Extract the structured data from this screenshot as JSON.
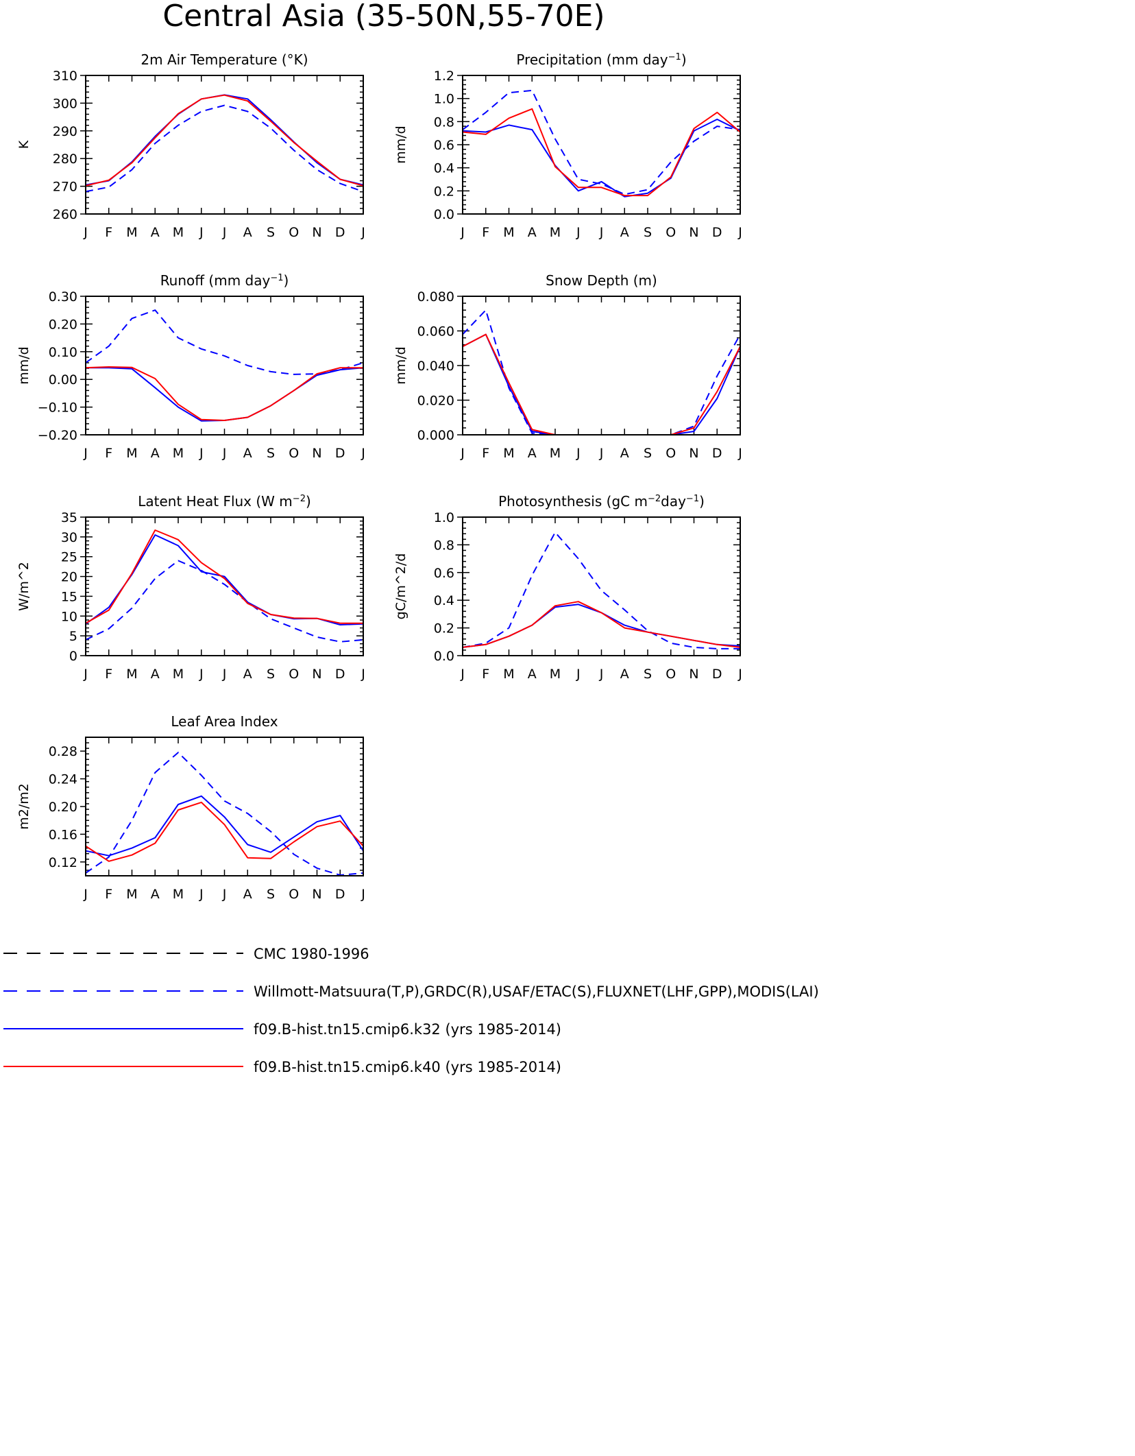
{
  "figure": {
    "title": "Central Asia (35-50N,55-70E)"
  },
  "colors": {
    "obs": "#0000ff",
    "k32": "#0000ff",
    "k40": "#ff0000",
    "cmc": "#000000"
  },
  "legend": {
    "cmc": "CMC 1980-1996",
    "obs": "Willmott-Matsuura(T,P),GRDC(R),USAF/ETAC(S),FLUXNET(LHF,GPP),MODIS(LAI)",
    "k32": "f09.B-hist.tn15.cmip6.k32 (yrs 1985-2014)",
    "k40": "f09.B-hist.tn15.cmip6.k40 (yrs 1985-2014)"
  },
  "chart_data": [
    {
      "type": "line",
      "title": "2m Air Temperature (°K)",
      "ylabel": "K",
      "xlabel": "",
      "categories": [
        "J",
        "F",
        "M",
        "A",
        "M",
        "J",
        "J",
        "A",
        "S",
        "O",
        "N",
        "D",
        "J"
      ],
      "ylim": [
        260,
        310
      ],
      "yticks": [
        "260",
        "270",
        "280",
        "290",
        "300",
        "310"
      ],
      "series": [
        {
          "name": "Willmott-Matsuura",
          "style": "dashed",
          "color": "#0000ff",
          "values": [
            268.1,
            269.7,
            276.0,
            285.5,
            292.0,
            297.0,
            299.2,
            297.0,
            291.0,
            283.0,
            276.0,
            271.0,
            268.1
          ]
        },
        {
          "name": "f09.B-hist.tn15.cmip6.k32",
          "style": "solid",
          "color": "#0000ff",
          "values": [
            270.5,
            272.0,
            278.8,
            288.0,
            296.0,
            301.5,
            303.0,
            301.5,
            294.0,
            286.0,
            278.5,
            272.5,
            270.5
          ]
        },
        {
          "name": "f09.B-hist.tn15.cmip6.k40",
          "style": "solid",
          "color": "#ff0000",
          "values": [
            270.2,
            272.2,
            278.5,
            287.5,
            296.2,
            301.5,
            302.9,
            300.8,
            293.5,
            285.8,
            279.0,
            272.5,
            270.2
          ]
        }
      ]
    },
    {
      "type": "line",
      "title": "Precipitation (mm day-1)",
      "ylabel": "mm/d",
      "xlabel": "",
      "categories": [
        "J",
        "F",
        "M",
        "A",
        "M",
        "J",
        "J",
        "A",
        "S",
        "O",
        "N",
        "D",
        "J"
      ],
      "ylim": [
        0,
        1.2
      ],
      "yticks": [
        "0.0",
        "0.2",
        "0.4",
        "0.6",
        "0.8",
        "1.0",
        "1.2"
      ],
      "series": [
        {
          "name": "Willmott-Matsuura",
          "style": "dashed",
          "color": "#0000ff",
          "values": [
            0.73,
            0.88,
            1.05,
            1.07,
            0.65,
            0.3,
            0.26,
            0.17,
            0.21,
            0.45,
            0.63,
            0.76,
            0.73
          ]
        },
        {
          "name": "f09.B-hist.tn15.cmip6.k32",
          "style": "solid",
          "color": "#0000ff",
          "values": [
            0.72,
            0.71,
            0.77,
            0.73,
            0.42,
            0.2,
            0.28,
            0.15,
            0.18,
            0.31,
            0.72,
            0.82,
            0.72
          ]
        },
        {
          "name": "f09.B-hist.tn15.cmip6.k40",
          "style": "solid",
          "color": "#ff0000",
          "values": [
            0.71,
            0.69,
            0.83,
            0.91,
            0.41,
            0.23,
            0.23,
            0.16,
            0.16,
            0.32,
            0.74,
            0.88,
            0.71
          ]
        }
      ]
    },
    {
      "type": "line",
      "title": "Runoff (mm day-1)",
      "ylabel": "mm/d",
      "xlabel": "",
      "categories": [
        "J",
        "F",
        "M",
        "A",
        "M",
        "J",
        "J",
        "A",
        "S",
        "O",
        "N",
        "D",
        "J"
      ],
      "ylim": [
        -0.2,
        0.3
      ],
      "yticks": [
        "-0.20",
        "-0.10",
        "0.00",
        "0.10",
        "0.20",
        "0.30"
      ],
      "series": [
        {
          "name": "GRDC",
          "style": "dashed",
          "color": "#0000ff",
          "values": [
            0.06,
            0.12,
            0.22,
            0.25,
            0.15,
            0.11,
            0.085,
            0.05,
            0.028,
            0.018,
            0.02,
            0.035,
            0.06
          ]
        },
        {
          "name": "f09.B-hist.tn15.cmip6.k32",
          "style": "solid",
          "color": "#0000ff",
          "values": [
            0.042,
            0.042,
            0.038,
            -0.03,
            -0.1,
            -0.15,
            -0.148,
            -0.137,
            -0.095,
            -0.04,
            0.015,
            0.035,
            0.042
          ]
        },
        {
          "name": "f09.B-hist.tn15.cmip6.k40",
          "style": "solid",
          "color": "#ff0000",
          "values": [
            0.042,
            0.045,
            0.043,
            0.003,
            -0.09,
            -0.145,
            -0.148,
            -0.137,
            -0.095,
            -0.04,
            0.02,
            0.042,
            0.042
          ]
        }
      ]
    },
    {
      "type": "line",
      "title": "Snow Depth (m)",
      "ylabel": "mm/d",
      "xlabel": "",
      "categories": [
        "J",
        "F",
        "M",
        "A",
        "M",
        "J",
        "J",
        "A",
        "S",
        "O",
        "N",
        "D",
        "J"
      ],
      "ylim": [
        0,
        0.08
      ],
      "yticks": [
        "0.000",
        "0.020",
        "0.040",
        "0.060",
        "0.080"
      ],
      "series": [
        {
          "name": "CMC 1980-1996",
          "style": "longdash",
          "color": "#000000",
          "values": [
            0,
            0,
            0,
            0,
            0,
            0,
            0,
            0,
            0,
            0,
            0,
            0,
            0
          ]
        },
        {
          "name": "USAF/ETAC",
          "style": "dashed",
          "color": "#0000ff",
          "values": [
            0.058,
            0.072,
            0.027,
            0.001,
            0.0,
            0.0,
            0.0,
            0.0,
            0.0,
            0.0,
            0.005,
            0.034,
            0.058
          ]
        },
        {
          "name": "f09.B-hist.tn15.cmip6.k32",
          "style": "solid",
          "color": "#0000ff",
          "values": [
            0.051,
            0.058,
            0.028,
            0.002,
            0.0,
            0.0,
            0.0,
            0.0,
            0.0,
            0.0,
            0.002,
            0.021,
            0.051
          ]
        },
        {
          "name": "f09.B-hist.tn15.cmip6.k40",
          "style": "solid",
          "color": "#ff0000",
          "values": [
            0.051,
            0.058,
            0.03,
            0.003,
            0.0,
            0.0,
            0.0,
            0.0,
            0.0,
            0.0,
            0.004,
            0.025,
            0.051
          ]
        }
      ]
    },
    {
      "type": "line",
      "title": "Latent Heat Flux (W m-2)",
      "ylabel": "W/m^2",
      "xlabel": "",
      "categories": [
        "J",
        "F",
        "M",
        "A",
        "M",
        "J",
        "J",
        "A",
        "S",
        "O",
        "N",
        "D",
        "J"
      ],
      "ylim": [
        0,
        35
      ],
      "yticks": [
        "0",
        "5",
        "10",
        "15",
        "20",
        "25",
        "30",
        "35"
      ],
      "series": [
        {
          "name": "FLUXNET",
          "style": "dashed",
          "color": "#0000ff",
          "values": [
            4.0,
            6.8,
            12.0,
            19.5,
            24.0,
            21.5,
            18.0,
            13.5,
            9.3,
            7.0,
            4.7,
            3.5,
            4.0
          ]
        },
        {
          "name": "f09.B-hist.tn15.cmip6.k32",
          "style": "solid",
          "color": "#0000ff",
          "values": [
            8.0,
            12.2,
            20.5,
            30.5,
            27.8,
            21.2,
            20.0,
            13.5,
            10.4,
            9.3,
            9.4,
            7.8,
            8.0
          ]
        },
        {
          "name": "f09.B-hist.tn15.cmip6.k40",
          "style": "solid",
          "color": "#ff0000",
          "values": [
            8.2,
            11.5,
            20.8,
            31.7,
            29.3,
            23.5,
            19.5,
            13.2,
            10.4,
            9.5,
            9.4,
            8.2,
            8.2
          ]
        }
      ]
    },
    {
      "type": "line",
      "title": "Photosynthesis (gC m-2day-1)",
      "ylabel": "gC/m^2/d",
      "xlabel": "",
      "categories": [
        "J",
        "F",
        "M",
        "A",
        "M",
        "J",
        "J",
        "A",
        "S",
        "O",
        "N",
        "D",
        "J"
      ],
      "ylim": [
        0,
        1.0
      ],
      "yticks": [
        "0.0",
        "0.2",
        "0.4",
        "0.6",
        "0.8",
        "1.0"
      ],
      "series": [
        {
          "name": "FLUXNET",
          "style": "dashed",
          "color": "#0000ff",
          "values": [
            0.06,
            0.09,
            0.2,
            0.58,
            0.89,
            0.7,
            0.47,
            0.33,
            0.18,
            0.09,
            0.06,
            0.05,
            0.05
          ]
        },
        {
          "name": "f09.B-hist.tn15.cmip6.k32",
          "style": "solid",
          "color": "#0000ff",
          "values": [
            0.06,
            0.08,
            0.14,
            0.22,
            0.35,
            0.37,
            0.31,
            0.22,
            0.17,
            0.14,
            0.11,
            0.08,
            0.07
          ]
        },
        {
          "name": "f09.B-hist.tn15.cmip6.k40",
          "style": "solid",
          "color": "#ff0000",
          "values": [
            0.06,
            0.08,
            0.14,
            0.22,
            0.36,
            0.39,
            0.31,
            0.2,
            0.17,
            0.14,
            0.11,
            0.08,
            0.06
          ]
        }
      ]
    },
    {
      "type": "line",
      "title": "Leaf Area Index",
      "ylabel": "m2/m2",
      "xlabel": "",
      "categories": [
        "J",
        "F",
        "M",
        "A",
        "M",
        "J",
        "J",
        "A",
        "S",
        "O",
        "N",
        "D",
        "J"
      ],
      "ylim": [
        0.1,
        0.3
      ],
      "yticks": [
        "0.12",
        "0.16",
        "0.20",
        "0.24",
        "0.28"
      ],
      "series": [
        {
          "name": "MODIS",
          "style": "dashed",
          "color": "#0000ff",
          "values": [
            0.104,
            0.127,
            0.18,
            0.249,
            0.278,
            0.245,
            0.208,
            0.19,
            0.164,
            0.131,
            0.111,
            0.101,
            0.104
          ]
        },
        {
          "name": "f09.B-hist.tn15.cmip6.k32",
          "style": "solid",
          "color": "#0000ff",
          "values": [
            0.136,
            0.129,
            0.14,
            0.155,
            0.203,
            0.215,
            0.185,
            0.145,
            0.134,
            0.156,
            0.178,
            0.187,
            0.136
          ]
        },
        {
          "name": "f09.B-hist.tn15.cmip6.k40",
          "style": "solid",
          "color": "#ff0000",
          "values": [
            0.143,
            0.121,
            0.13,
            0.147,
            0.195,
            0.206,
            0.174,
            0.126,
            0.125,
            0.149,
            0.171,
            0.179,
            0.143
          ]
        }
      ]
    }
  ]
}
